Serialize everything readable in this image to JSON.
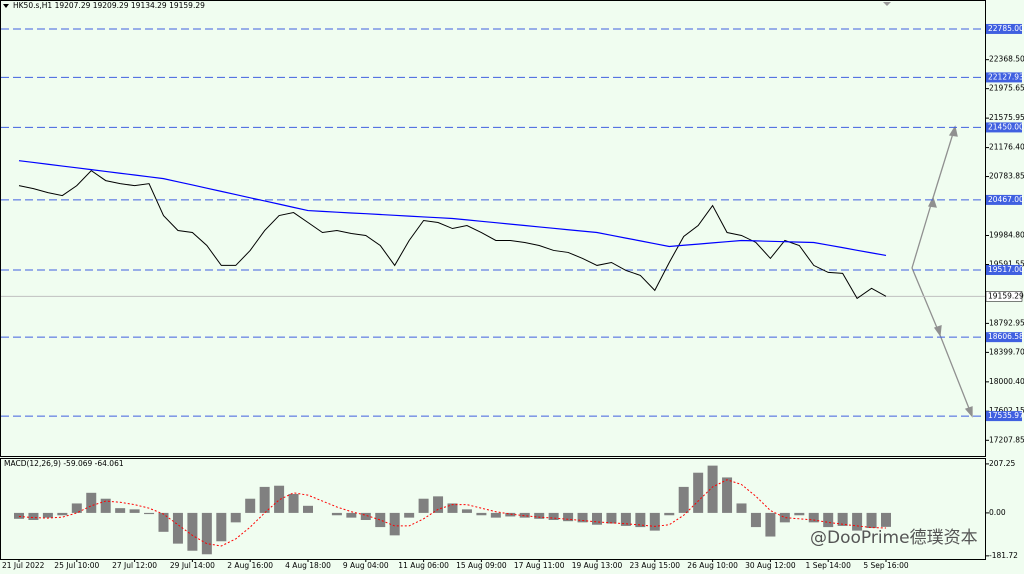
{
  "chart_data": [
    {
      "type": "line",
      "title": "HK50.s,H1  19207.29 19209.29 19134.29 19159.29",
      "categories": [
        "21 Jul 2022",
        null,
        null,
        null,
        "25 Jul 10:00",
        null,
        null,
        null,
        "27 Jul 12:00",
        null,
        null,
        null,
        "29 Jul 14:00",
        null,
        null,
        null,
        "2 Aug 16:00",
        null,
        null,
        null,
        "4 Aug 18:00",
        null,
        null,
        null,
        "9 Aug 04:00",
        null,
        null,
        null,
        "11 Aug 06:00",
        null,
        null,
        null,
        "15 Aug 09:00",
        null,
        null,
        null,
        "17 Aug 11:00",
        null,
        null,
        null,
        "19 Aug 13:00",
        null,
        null,
        null,
        "23 Aug 15:00",
        null,
        null,
        null,
        "26 Aug 10:00",
        null,
        null,
        null,
        "30 Aug 12:00",
        null,
        null,
        null,
        "1 Sep 14:00",
        null,
        null,
        null,
        "5 Sep 16:00"
      ],
      "series": [
        {
          "color": "#000000",
          "values": [
            20661,
            20620,
            20566,
            20526,
            20661,
            20864,
            20729,
            20688,
            20661,
            20688,
            20255,
            20052,
            20025,
            19849,
            19579,
            19579,
            19782,
            20052,
            20255,
            20296,
            20161,
            20025,
            20052,
            20012,
            19985,
            19849,
            19579,
            19917,
            20188,
            20161,
            20079,
            20120,
            20025,
            19917,
            19917,
            19890,
            19849,
            19782,
            19755,
            19674,
            19579,
            19619,
            19511,
            19444,
            19241,
            19619,
            19971,
            20120,
            20391,
            20025,
            19985,
            19890,
            19674,
            19917,
            19849,
            19579,
            19484,
            19471,
            19132,
            19268,
            19159.29
          ]
        },
        {
          "color": "#0000ff",
          "values": [
            20999,
            20975,
            20951,
            20926,
            20902,
            20878,
            20853,
            20829,
            20805,
            20780,
            20756,
            20713,
            20670,
            20626,
            20583,
            20540,
            20496,
            20453,
            20410,
            20366,
            20323,
            20312,
            20301,
            20290,
            20280,
            20269,
            20258,
            20247,
            20236,
            20226,
            20215,
            20196,
            20177,
            20158,
            20139,
            20120,
            20101,
            20082,
            20063,
            20044,
            20025,
            19987,
            19949,
            19912,
            19874,
            19836,
            19852,
            19868,
            19885,
            19901,
            19917,
            19912,
            19906,
            19901,
            19895,
            19890,
            19855,
            19820,
            19784,
            19749,
            19714
          ]
        }
      ],
      "ylim": [
        16995,
        23164
      ],
      "yticks": [
        {
          "value": 22368.5,
          "label": "22368.50"
        },
        21975.65,
        21575.95,
        {
          "value": 21176.4,
          "label": "21176.40"
        },
        20783.85,
        {
          "value": 19984.8,
          "label": "19984.80"
        },
        19591.55,
        18792.95,
        {
          "value": 18399.7,
          "label": "18399.70"
        },
        {
          "value": 18000.4,
          "label": "18000.40"
        },
        17602.15,
        17207.85
      ],
      "levels": [
        {
          "value": 22785,
          "label": "22785.00"
        },
        22127.93,
        {
          "value": 21450,
          "label": "21450.00"
        },
        {
          "value": 20467,
          "label": "20467.00"
        },
        {
          "value": 19517,
          "label": "19517.00"
        },
        18606.58,
        17535.97
      ],
      "level_color": "#4060e0",
      "current_price": 19159.29
    },
    {
      "type": "bar",
      "title": "MACD(12,26,9) -59.069 -64.061",
      "color": "#808080",
      "values": [
        -25,
        -30,
        -20,
        -10,
        40,
        85,
        60,
        20,
        15,
        -5,
        -80,
        -130,
        -160,
        -175,
        -120,
        -40,
        60,
        110,
        115,
        80,
        30,
        0,
        -10,
        -20,
        -30,
        -60,
        -95,
        -20,
        60,
        70,
        40,
        15,
        -10,
        -20,
        -15,
        -20,
        -25,
        -30,
        -35,
        -40,
        -50,
        -45,
        -55,
        -60,
        -75,
        -10,
        110,
        170,
        200,
        150,
        40,
        -60,
        -100,
        -40,
        -10,
        -40,
        -60,
        -55,
        -75,
        -64,
        -59.069
      ],
      "signal": [
        -15,
        -20,
        -22,
        -18,
        0,
        30,
        50,
        45,
        35,
        20,
        -5,
        -50,
        -95,
        -130,
        -140,
        -110,
        -60,
        0,
        55,
        85,
        75,
        50,
        25,
        5,
        -10,
        -30,
        -55,
        -55,
        -25,
        15,
        35,
        35,
        20,
        5,
        -5,
        -12,
        -18,
        -22,
        -27,
        -32,
        -38,
        -42,
        -46,
        -51,
        -57,
        -50,
        -10,
        50,
        110,
        140,
        120,
        70,
        10,
        -20,
        -25,
        -30,
        -40,
        -48,
        -55,
        -62,
        -64.061
      ],
      "signal_color": "#ff0000",
      "ylim": [
        -195,
        228
      ],
      "yticks": [
        207.25,
        {
          "value": 0,
          "label": "0.00"
        },
        -181.72
      ]
    }
  ],
  "watermark": "@DooPrime德璞资本"
}
